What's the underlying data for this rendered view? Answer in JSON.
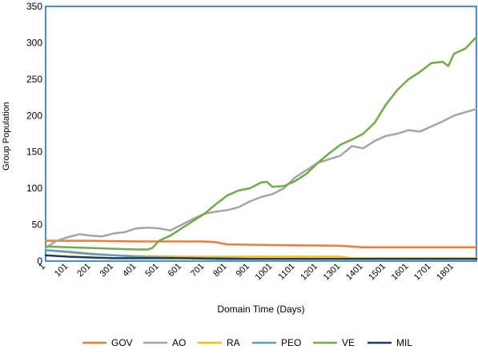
{
  "chart_data": {
    "type": "line",
    "xlabel": "Domain Time (Days)",
    "ylabel": "Group  Population",
    "xlim": [
      1,
      1900
    ],
    "ylim": [
      0,
      350
    ],
    "y_ticks": [
      0,
      50,
      100,
      150,
      200,
      250,
      300,
      350
    ],
    "x_ticks": [
      1,
      101,
      201,
      301,
      401,
      501,
      601,
      701,
      801,
      901,
      1001,
      1101,
      1201,
      1301,
      1401,
      1501,
      1601,
      1701,
      1801
    ],
    "grid": false,
    "legend_position": "bottom",
    "series": [
      {
        "name": "GOV",
        "color": "#ED7D31",
        "points": [
          [
            1,
            28
          ],
          [
            200,
            28
          ],
          [
            400,
            27
          ],
          [
            700,
            27
          ],
          [
            750,
            26
          ],
          [
            800,
            23
          ],
          [
            1000,
            22
          ],
          [
            1300,
            21
          ],
          [
            1400,
            19
          ],
          [
            1600,
            19
          ],
          [
            1900,
            19
          ]
        ]
      },
      {
        "name": "AO",
        "color": "#A5A5A5",
        "points": [
          [
            1,
            18
          ],
          [
            50,
            28
          ],
          [
            101,
            33
          ],
          [
            150,
            37
          ],
          [
            201,
            35
          ],
          [
            250,
            34
          ],
          [
            301,
            38
          ],
          [
            351,
            40
          ],
          [
            401,
            45
          ],
          [
            451,
            46
          ],
          [
            501,
            45
          ],
          [
            551,
            42
          ],
          [
            601,
            50
          ],
          [
            651,
            58
          ],
          [
            701,
            65
          ],
          [
            751,
            68
          ],
          [
            801,
            70
          ],
          [
            851,
            74
          ],
          [
            901,
            82
          ],
          [
            951,
            88
          ],
          [
            1001,
            92
          ],
          [
            1051,
            100
          ],
          [
            1101,
            115
          ],
          [
            1151,
            125
          ],
          [
            1201,
            135
          ],
          [
            1251,
            140
          ],
          [
            1301,
            145
          ],
          [
            1351,
            158
          ],
          [
            1401,
            155
          ],
          [
            1451,
            165
          ],
          [
            1501,
            172
          ],
          [
            1551,
            175
          ],
          [
            1601,
            180
          ],
          [
            1651,
            178
          ],
          [
            1701,
            185
          ],
          [
            1751,
            192
          ],
          [
            1801,
            200
          ],
          [
            1900,
            209
          ]
        ]
      },
      {
        "name": "RA",
        "color": "#FFC000",
        "points": [
          [
            1,
            15
          ],
          [
            101,
            12
          ],
          [
            201,
            9
          ],
          [
            301,
            8
          ],
          [
            401,
            7
          ],
          [
            601,
            6
          ],
          [
            801,
            6
          ],
          [
            1001,
            6
          ],
          [
            1301,
            6
          ],
          [
            1350,
            4
          ],
          [
            1900,
            4
          ]
        ]
      },
      {
        "name": "PEO",
        "color": "#5B9BD5",
        "points": [
          [
            1,
            15
          ],
          [
            101,
            13
          ],
          [
            201,
            10
          ],
          [
            301,
            8
          ],
          [
            401,
            6
          ],
          [
            501,
            5
          ],
          [
            601,
            4
          ],
          [
            801,
            4
          ],
          [
            901,
            3
          ],
          [
            1900,
            3
          ]
        ]
      },
      {
        "name": "VE",
        "color": "#70AD47",
        "points": [
          [
            1,
            20
          ],
          [
            101,
            19
          ],
          [
            201,
            18
          ],
          [
            301,
            17
          ],
          [
            401,
            16
          ],
          [
            451,
            16
          ],
          [
            471,
            18
          ],
          [
            501,
            28
          ],
          [
            551,
            35
          ],
          [
            601,
            45
          ],
          [
            651,
            55
          ],
          [
            701,
            65
          ],
          [
            751,
            78
          ],
          [
            801,
            90
          ],
          [
            851,
            97
          ],
          [
            901,
            100
          ],
          [
            951,
            108
          ],
          [
            976,
            109
          ],
          [
            1001,
            102
          ],
          [
            1051,
            103
          ],
          [
            1101,
            110
          ],
          [
            1151,
            120
          ],
          [
            1201,
            135
          ],
          [
            1251,
            148
          ],
          [
            1301,
            160
          ],
          [
            1351,
            167
          ],
          [
            1401,
            175
          ],
          [
            1451,
            190
          ],
          [
            1501,
            215
          ],
          [
            1551,
            235
          ],
          [
            1601,
            250
          ],
          [
            1651,
            260
          ],
          [
            1701,
            272
          ],
          [
            1751,
            274
          ],
          [
            1776,
            268
          ],
          [
            1801,
            285
          ],
          [
            1851,
            292
          ],
          [
            1900,
            308
          ]
        ]
      },
      {
        "name": "MIL",
        "color": "#1F3864",
        "points": [
          [
            1,
            8
          ],
          [
            101,
            6
          ],
          [
            201,
            5
          ],
          [
            301,
            4
          ],
          [
            401,
            4
          ],
          [
            601,
            4
          ],
          [
            801,
            3
          ],
          [
            1001,
            3
          ],
          [
            1900,
            3
          ]
        ]
      }
    ]
  }
}
